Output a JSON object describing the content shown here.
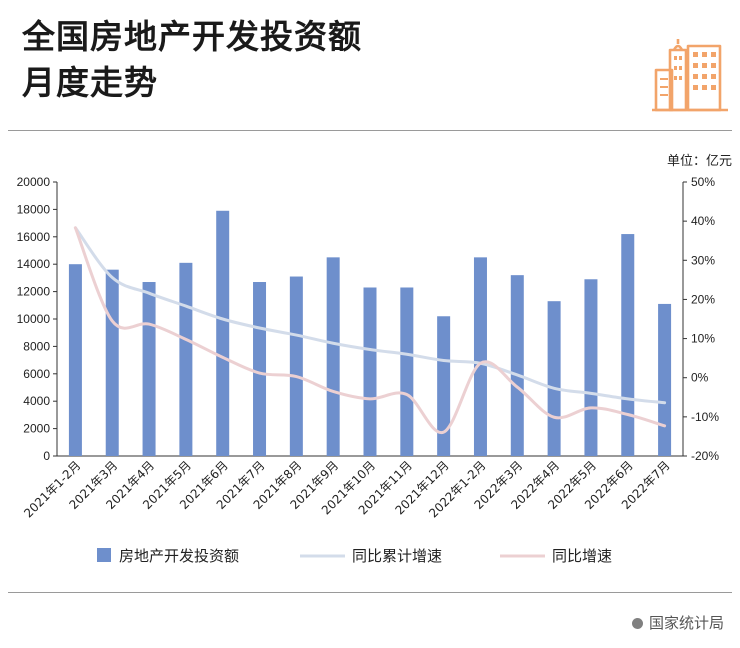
{
  "header": {
    "title_line1": "全国房地产开发投资额",
    "title_line2": "月度走势"
  },
  "unit_label": "单位：亿元",
  "source": "国家统计局",
  "chart_data": {
    "type": "bar+line",
    "categories": [
      "2021年1-2月",
      "2021年3月",
      "2021年4月",
      "2021年5月",
      "2021年6月",
      "2021年7月",
      "2021年8月",
      "2021年9月",
      "2021年10月",
      "2021年11月",
      "2021年12月",
      "2022年1-2月",
      "2022年3月",
      "2022年4月",
      "2022年5月",
      "2022年6月",
      "2022年7月"
    ],
    "bar_series": {
      "name": "房地产开发投资额",
      "axis": "left",
      "values": [
        14000,
        13600,
        12700,
        14100,
        17900,
        12700,
        13100,
        14500,
        12300,
        12300,
        10200,
        14500,
        13200,
        11300,
        12900,
        16200,
        11100
      ],
      "color": "#6e8fcc"
    },
    "line_series": [
      {
        "name": "同比累计增速",
        "axis": "right",
        "values": [
          38.3,
          25.6,
          21.6,
          18.3,
          15.0,
          12.7,
          10.9,
          8.8,
          7.2,
          6.0,
          4.4,
          3.7,
          0.7,
          -2.7,
          -4.0,
          -5.4,
          -6.4
        ],
        "color": "#d3dcea"
      },
      {
        "name": "同比增速",
        "axis": "right",
        "values": [
          38.3,
          14.5,
          13.7,
          9.8,
          5.2,
          1.2,
          0.3,
          -3.5,
          -5.4,
          -4.3,
          -13.9,
          3.7,
          -2.4,
          -10.1,
          -7.7,
          -9.4,
          -12.3
        ],
        "color": "#ecd0d2"
      }
    ],
    "y_left": {
      "min": 0,
      "max": 20000,
      "ticks": [
        0,
        2000,
        4000,
        6000,
        8000,
        10000,
        12000,
        14000,
        16000,
        18000,
        20000
      ]
    },
    "y_right": {
      "min": -20,
      "max": 50,
      "ticks": [
        "-20%",
        "-10%",
        "0%",
        "10%",
        "20%",
        "30%",
        "40%",
        "50%"
      ]
    },
    "legend": [
      "房地产开发投资额",
      "同比累计增速",
      "同比增速"
    ],
    "legend_position": "bottom",
    "grid": false
  }
}
